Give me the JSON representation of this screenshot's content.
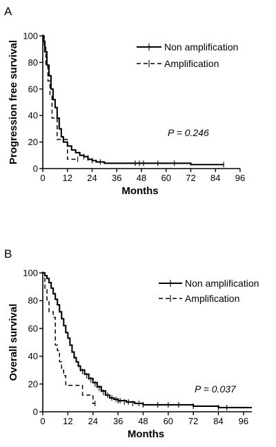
{
  "chart_data": [
    {
      "panel_label": "A",
      "type": "line",
      "subtype": "kaplan-meier",
      "xlabel": "Months",
      "ylabel": "Progression free survival",
      "xlim": [
        0,
        96
      ],
      "ylim": [
        0,
        100
      ],
      "xticks": [
        0,
        12,
        24,
        36,
        48,
        60,
        72,
        84,
        96
      ],
      "yticks": [
        0,
        20,
        40,
        60,
        80,
        100
      ],
      "annotation": "P = 0.246",
      "legend_position": "top-right",
      "series": [
        {
          "name": "Non amplification",
          "style": "solid",
          "steps": [
            [
              0,
              100
            ],
            [
              0.5,
              96
            ],
            [
              1,
              88
            ],
            [
              2,
              78
            ],
            [
              3,
              70
            ],
            [
              4,
              60
            ],
            [
              5,
              52
            ],
            [
              6,
              46
            ],
            [
              7,
              38
            ],
            [
              8,
              30
            ],
            [
              9,
              24
            ],
            [
              10,
              20
            ],
            [
              12,
              17
            ],
            [
              14,
              14
            ],
            [
              16,
              12
            ],
            [
              18,
              10
            ],
            [
              20,
              9
            ],
            [
              22,
              7
            ],
            [
              24,
              6
            ],
            [
              26,
              5
            ],
            [
              30,
              4
            ],
            [
              40,
              4
            ],
            [
              50,
              4
            ],
            [
              72,
              3
            ],
            [
              88,
              3
            ]
          ],
          "censored": [
            [
              20,
              9
            ],
            [
              22,
              8
            ],
            [
              24,
              6
            ],
            [
              28,
              5
            ],
            [
              45,
              4
            ],
            [
              47,
              4
            ],
            [
              49,
              4
            ],
            [
              56,
              4
            ],
            [
              64,
              4
            ],
            [
              88,
              3
            ]
          ]
        },
        {
          "name": "Amplification",
          "style": "dashed",
          "steps": [
            [
              0,
              100
            ],
            [
              0.7,
              92
            ],
            [
              1.5,
              78
            ],
            [
              2.5,
              66
            ],
            [
              3.5,
              55
            ],
            [
              4.5,
              38
            ],
            [
              6,
              38
            ],
            [
              7,
              22
            ],
            [
              11,
              22
            ],
            [
              12,
              7
            ],
            [
              17,
              7
            ]
          ],
          "censored": [
            [
              17,
              7
            ]
          ]
        }
      ]
    },
    {
      "panel_label": "B",
      "type": "line",
      "subtype": "kaplan-meier",
      "xlabel": "Months",
      "ylabel": "Overall survival",
      "xlim": [
        0,
        100
      ],
      "ylim": [
        0,
        100
      ],
      "xticks": [
        0,
        12,
        24,
        36,
        48,
        60,
        72,
        84,
        96
      ],
      "yticks": [
        0,
        20,
        40,
        60,
        80,
        100
      ],
      "annotation": "P = 0.037",
      "legend_position": "top-right",
      "series": [
        {
          "name": "Non amplification",
          "style": "solid",
          "steps": [
            [
              0,
              100
            ],
            [
              1,
              98
            ],
            [
              2,
              96
            ],
            [
              3,
              93
            ],
            [
              4,
              89
            ],
            [
              5,
              85
            ],
            [
              6,
              81
            ],
            [
              7,
              77
            ],
            [
              8,
              72
            ],
            [
              9,
              67
            ],
            [
              10,
              62
            ],
            [
              11,
              57
            ],
            [
              12,
              53
            ],
            [
              13,
              48
            ],
            [
              14,
              43
            ],
            [
              15,
              39
            ],
            [
              16,
              36
            ],
            [
              17,
              33
            ],
            [
              18,
              30
            ],
            [
              20,
              27
            ],
            [
              22,
              24
            ],
            [
              24,
              21
            ],
            [
              26,
              18
            ],
            [
              28,
              15
            ],
            [
              30,
              12
            ],
            [
              32,
              10
            ],
            [
              34,
              9
            ],
            [
              36,
              8
            ],
            [
              40,
              7
            ],
            [
              44,
              6
            ],
            [
              48,
              5
            ],
            [
              60,
              5
            ],
            [
              72,
              4
            ],
            [
              84,
              3
            ],
            [
              100,
              3
            ]
          ],
          "censored": [
            [
              15,
              40
            ],
            [
              17,
              34
            ],
            [
              18,
              31
            ],
            [
              19,
              29
            ],
            [
              21,
              26
            ],
            [
              22,
              25
            ],
            [
              23,
              23
            ],
            [
              25,
              20
            ],
            [
              26,
              19
            ],
            [
              27,
              17
            ],
            [
              28,
              16
            ],
            [
              29,
              14
            ],
            [
              31,
              12
            ],
            [
              33,
              10
            ],
            [
              35,
              9
            ],
            [
              36,
              8
            ],
            [
              37,
              8
            ],
            [
              39,
              7
            ],
            [
              41,
              7
            ],
            [
              43,
              6
            ],
            [
              46,
              6
            ],
            [
              48,
              5
            ],
            [
              55,
              5
            ],
            [
              60,
              5
            ],
            [
              65,
              5
            ],
            [
              72,
              4
            ],
            [
              84,
              3
            ],
            [
              88,
              3
            ]
          ]
        },
        {
          "name": "Amplification",
          "style": "dashed",
          "steps": [
            [
              0,
              100
            ],
            [
              1,
              88
            ],
            [
              2,
              80
            ],
            [
              3,
              72
            ],
            [
              5,
              68
            ],
            [
              6,
              48
            ],
            [
              7,
              44
            ],
            [
              8,
              36
            ],
            [
              9,
              30
            ],
            [
              10,
              26
            ],
            [
              11,
              19
            ],
            [
              18,
              19
            ],
            [
              19,
              12
            ],
            [
              23,
              12
            ],
            [
              24,
              6
            ],
            [
              25,
              6
            ]
          ],
          "censored": [
            [
              25,
              6
            ]
          ]
        }
      ]
    }
  ]
}
